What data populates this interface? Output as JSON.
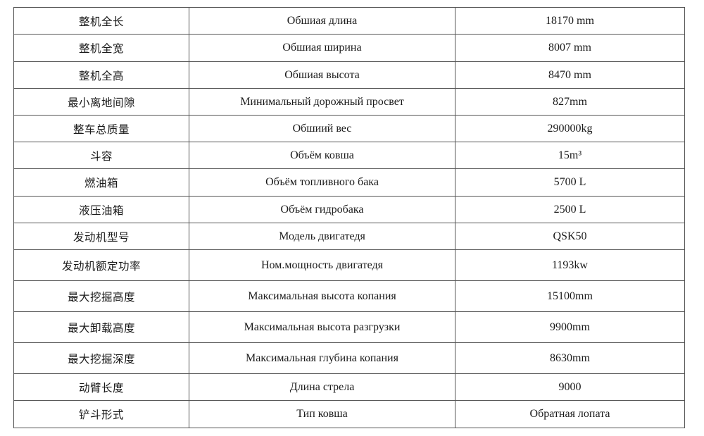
{
  "table": {
    "rows": [
      {
        "cn": "整机全长",
        "ru": "Обшиая длина",
        "value": "18170 mm"
      },
      {
        "cn": "整机全宽",
        "ru": "Обшиая ширина",
        "value": "8007 mm"
      },
      {
        "cn": "整机全高",
        "ru": "Обшиая высота",
        "value": "8470 mm"
      },
      {
        "cn": "最小离地间隙",
        "ru": "Минимальный дорожный просвет",
        "value": "827mm"
      },
      {
        "cn": "整车总质量",
        "ru": "Обшиий вес",
        "value": "290000kg"
      },
      {
        "cn": "斗容",
        "ru": "Объём ковша",
        "value": "15m³"
      },
      {
        "cn": "燃油箱",
        "ru": "Объём топливного бака",
        "value": "5700 L"
      },
      {
        "cn": "液压油箱",
        "ru": "Объём гидробака",
        "value": "2500 L"
      },
      {
        "cn": "发动机型号",
        "ru": "Модель двигатедя",
        "value": "QSK50"
      },
      {
        "cn": "发动机额定功率",
        "ru": "Ном.мощность двигатедя",
        "value": "1193kw"
      },
      {
        "cn": "最大挖掘高度",
        "ru": "Максимальная высота копания",
        "value": "15100mm"
      },
      {
        "cn": "最大卸载高度",
        "ru": "Максимальная высота разгрузки",
        "value": "9900mm"
      },
      {
        "cn": "最大挖掘深度",
        "ru": "Максимальная глубина копания",
        "value": "8630mm"
      },
      {
        "cn": "动臂长度",
        "ru": "Длина стрела",
        "value": "9000"
      },
      {
        "cn": "铲斗形式",
        "ru": "Тип ковша",
        "value": "Обратная лопата"
      }
    ]
  }
}
